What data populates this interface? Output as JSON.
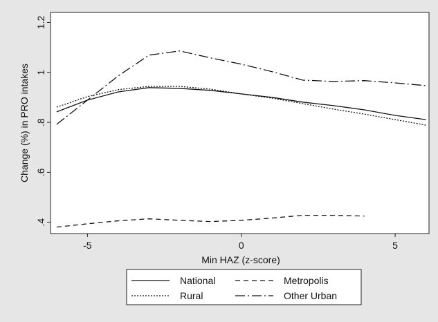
{
  "chart_data": {
    "type": "line",
    "x_label": "Min HAZ (z-score)",
    "y_label": "Change (%) in PRO intakes",
    "x": [
      -6,
      -5,
      -4,
      -3,
      -2,
      -1,
      0,
      1,
      2,
      3,
      4,
      5,
      6
    ],
    "series": [
      {
        "name": "National",
        "color": "#111111",
        "values": [
          0.842,
          0.889,
          0.922,
          0.939,
          0.936,
          0.928,
          0.914,
          0.9,
          0.881,
          0.867,
          0.85,
          0.828,
          0.811
        ]
      },
      {
        "name": "Metropolis",
        "color": "#111111",
        "values": [
          0.381,
          0.394,
          0.406,
          0.414,
          0.408,
          0.403,
          0.408,
          0.417,
          0.428,
          0.428,
          0.425,
          null,
          null
        ]
      },
      {
        "name": "Rural",
        "color": "#111111",
        "values": [
          0.861,
          0.903,
          0.931,
          0.944,
          0.944,
          0.933,
          0.914,
          0.897,
          0.875,
          0.853,
          0.833,
          0.811,
          0.789
        ]
      },
      {
        "name": "Other Urban",
        "color": "#111111",
        "values": [
          0.792,
          0.889,
          0.986,
          1.069,
          1.086,
          1.058,
          1.033,
          1.003,
          0.969,
          0.964,
          0.967,
          0.958,
          0.947
        ]
      }
    ],
    "xlim": [
      -6.2,
      6.1
    ],
    "xticks": [
      -5,
      0,
      5
    ],
    "ylim": [
      0.355,
      1.24
    ],
    "yticks": [
      {
        "value": 0.4,
        "label": ".4"
      },
      {
        "value": 0.6,
        "label": ".6"
      },
      {
        "value": 0.8,
        "label": ".8"
      },
      1,
      1.2
    ]
  }
}
